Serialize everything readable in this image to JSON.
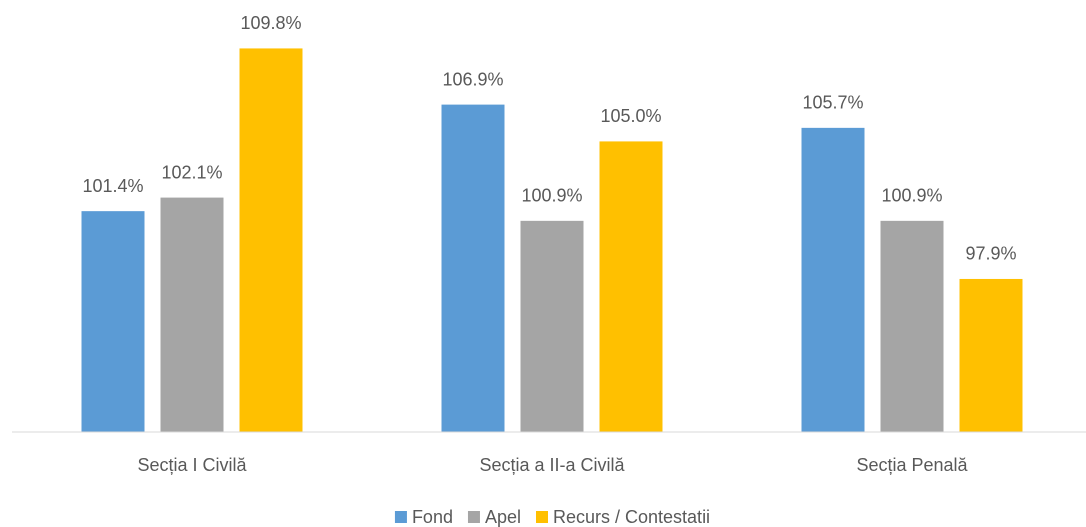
{
  "chart_data": {
    "type": "bar",
    "categories": [
      "Secția I Civilă",
      "Secția a II-a Civilă",
      "Secția Penală"
    ],
    "series": [
      {
        "name": "Fond",
        "color": "#5b9bd5",
        "values": [
          101.4,
          106.9,
          105.7
        ],
        "value_labels": [
          "101.4%",
          "106.9%",
          "105.7%"
        ]
      },
      {
        "name": "Apel",
        "color": "#a5a5a5",
        "values": [
          102.1,
          100.9,
          100.9
        ],
        "value_labels": [
          "102.1%",
          "100.9%",
          "100.9%"
        ]
      },
      {
        "name": "Recurs / Contestatii",
        "color": "#ffc000",
        "values": [
          109.8,
          105.0,
          97.9
        ],
        "value_labels": [
          "109.8%",
          "105.0%",
          "97.9%"
        ]
      }
    ],
    "ylim": [
      90,
      112.3
    ],
    "legend": "bottom"
  }
}
